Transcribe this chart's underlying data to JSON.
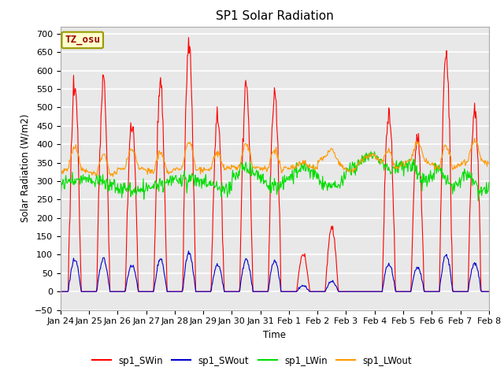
{
  "title": "SP1 Solar Radiation",
  "ylabel": "Solar Radiation (W/m2)",
  "xlabel": "Time",
  "ylim": [
    -50,
    720
  ],
  "yticks": [
    -50,
    0,
    50,
    100,
    150,
    200,
    250,
    300,
    350,
    400,
    450,
    500,
    550,
    600,
    650,
    700
  ],
  "plot_bg_color": "#e8e8e8",
  "fig_bg_color": "#ffffff",
  "grid_color": "#cccccc",
  "colors": {
    "sp1_SWin": "#ff0000",
    "sp1_SWout": "#0000cc",
    "sp1_LWin": "#00dd00",
    "sp1_LWout": "#ff9900"
  },
  "annotation_text": "TZ_osu",
  "annotation_bg": "#ffffcc",
  "annotation_border": "#999900",
  "day_labels": [
    "Jan 24",
    "Jan 25",
    "Jan 26",
    "Jan 27",
    "Jan 28",
    "Jan 29",
    "Jan 30",
    "Jan 31",
    "Feb 1",
    "Feb 2",
    "Feb 3",
    "Feb 4",
    "Feb 5",
    "Feb 6",
    "Feb 7",
    "Feb 8"
  ]
}
